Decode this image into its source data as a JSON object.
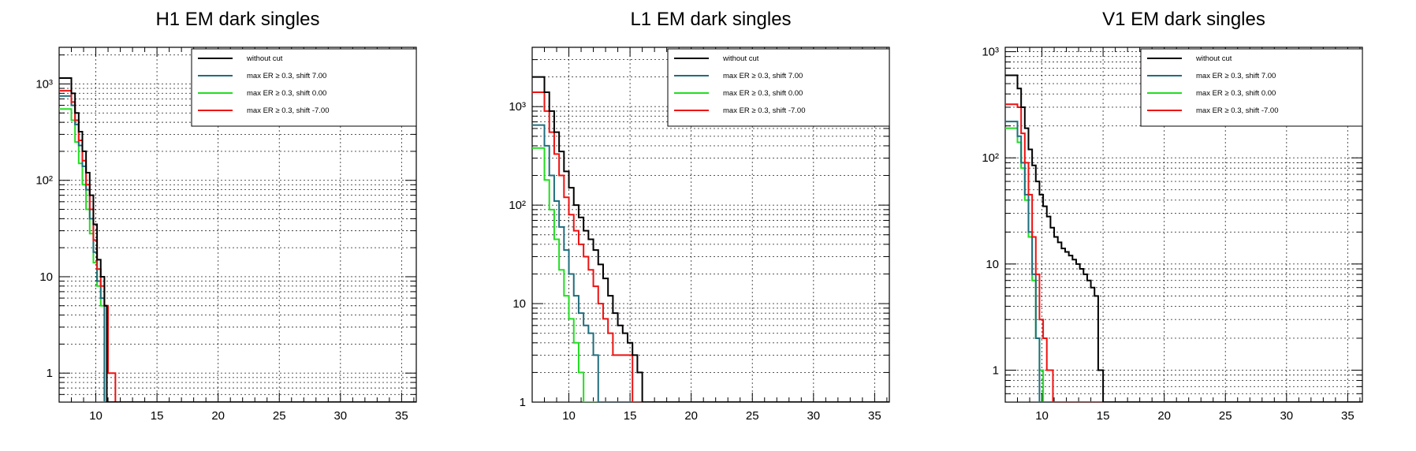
{
  "chart_data": [
    {
      "type": "line",
      "step": true,
      "title": "H1 EM dark singles",
      "xlabel": "",
      "ylabel": "",
      "xlim": [
        7,
        36.2
      ],
      "ylim": [
        0.5,
        2400
      ],
      "ylog": true,
      "grid": true,
      "legend_position": "top-right",
      "x_ticks": [
        10,
        15,
        20,
        25,
        30,
        35
      ],
      "x_tick_labels": [
        "10",
        "15",
        "20",
        "25",
        "30",
        "35"
      ],
      "y_ticks": [
        1,
        10,
        100,
        1000
      ],
      "y_tick_labels": [
        "1",
        "10",
        "10²",
        "10³"
      ],
      "series": [
        {
          "name": "without cut",
          "color": "#000000",
          "x": [
            7.0,
            8.0,
            8.3,
            8.6,
            8.9,
            9.2,
            9.5,
            9.8,
            10.1,
            10.4,
            10.7,
            10.9
          ],
          "y": [
            1150,
            800,
            500,
            320,
            200,
            120,
            70,
            35,
            15,
            10,
            5,
            0.5
          ]
        },
        {
          "name": "max ER ≥ 0.3, shift 7.00",
          "color": "#1f6d7e",
          "x": [
            7.0,
            8.0,
            8.3,
            8.6,
            8.9,
            9.2,
            9.5,
            9.8,
            10.1,
            10.4,
            10.7
          ],
          "y": [
            750,
            600,
            380,
            230,
            140,
            80,
            40,
            18,
            9,
            6,
            0.5
          ]
        },
        {
          "name": "max ER ≥ 0.3, shift 0.00",
          "color": "#22dd22",
          "x": [
            7.0,
            8.0,
            8.3,
            8.6,
            8.9,
            9.2,
            9.5,
            9.8,
            10.1,
            10.4,
            10.7
          ],
          "y": [
            550,
            420,
            250,
            150,
            90,
            50,
            28,
            14,
            8,
            5,
            0.5
          ]
        },
        {
          "name": "max ER ≥ 0.3, shift -7.00",
          "color": "#ee1111",
          "x": [
            7.0,
            8.0,
            8.3,
            8.6,
            8.9,
            9.2,
            9.5,
            9.8,
            10.1,
            10.4,
            10.7,
            11.0,
            11.6
          ],
          "y": [
            850,
            650,
            420,
            260,
            160,
            90,
            50,
            24,
            12,
            8,
            5,
            1,
            0.5
          ]
        }
      ]
    },
    {
      "type": "line",
      "step": true,
      "title": "L1 EM dark singles",
      "xlabel": "",
      "ylabel": "",
      "xlim": [
        7,
        36.2
      ],
      "ylim": [
        1,
        4000
      ],
      "ylog": true,
      "grid": true,
      "legend_position": "top-right",
      "x_ticks": [
        10,
        15,
        20,
        25,
        30,
        35
      ],
      "x_tick_labels": [
        "10",
        "15",
        "20",
        "25",
        "30",
        "35"
      ],
      "y_ticks": [
        1,
        10,
        100,
        1000
      ],
      "y_tick_labels": [
        "1",
        "10",
        "10²",
        "10³"
      ],
      "series": [
        {
          "name": "without cut",
          "color": "#000000",
          "x": [
            7.0,
            8.0,
            8.4,
            8.8,
            9.2,
            9.6,
            10.0,
            10.4,
            10.8,
            11.2,
            11.6,
            12.0,
            12.4,
            12.8,
            13.2,
            13.6,
            14.0,
            14.4,
            14.8,
            15.2,
            15.6,
            16.0
          ],
          "y": [
            2000,
            1400,
            900,
            550,
            350,
            220,
            150,
            100,
            75,
            55,
            45,
            35,
            25,
            18,
            12,
            8,
            6,
            5,
            4,
            3,
            2,
            1
          ]
        },
        {
          "name": "max ER ≥ 0.3, shift 7.00",
          "color": "#1f6d7e",
          "x": [
            7.0,
            8.0,
            8.4,
            8.8,
            9.2,
            9.6,
            10.0,
            10.4,
            10.8,
            11.2,
            11.6,
            12.0,
            12.4
          ],
          "y": [
            650,
            400,
            200,
            110,
            60,
            35,
            20,
            12,
            8,
            6,
            5,
            3,
            1
          ]
        },
        {
          "name": "max ER ≥ 0.3, shift 0.00",
          "color": "#22dd22",
          "x": [
            7.0,
            8.0,
            8.4,
            8.8,
            9.2,
            9.6,
            10.0,
            10.4,
            10.8,
            11.2
          ],
          "y": [
            380,
            180,
            90,
            45,
            22,
            12,
            7,
            4,
            2,
            1
          ]
        },
        {
          "name": "max ER ≥ 0.3, shift -7.00",
          "color": "#ee1111",
          "x": [
            7.0,
            8.0,
            8.4,
            8.8,
            9.2,
            9.6,
            10.0,
            10.4,
            10.8,
            11.2,
            11.6,
            12.0,
            12.4,
            12.8,
            13.2,
            13.6,
            14.0,
            14.8,
            15.2
          ],
          "y": [
            1400,
            900,
            550,
            330,
            200,
            120,
            80,
            55,
            40,
            30,
            22,
            15,
            10,
            7,
            5,
            3,
            3,
            3,
            1
          ]
        }
      ]
    },
    {
      "type": "line",
      "step": true,
      "title": "V1 EM dark singles",
      "xlabel": "",
      "ylabel": "",
      "xlim": [
        7,
        36.2
      ],
      "ylim": [
        0.5,
        1100
      ],
      "ylog": true,
      "grid": true,
      "legend_position": "top-right",
      "x_ticks": [
        10,
        15,
        20,
        25,
        30,
        35
      ],
      "x_tick_labels": [
        "10",
        "15",
        "20",
        "25",
        "30",
        "35"
      ],
      "y_ticks": [
        1,
        10,
        100,
        1000
      ],
      "y_tick_labels": [
        "1",
        "10",
        "10²",
        "10³"
      ],
      "series": [
        {
          "name": "without cut",
          "color": "#000000",
          "x": [
            7.0,
            8.0,
            8.3,
            8.6,
            8.9,
            9.2,
            9.5,
            9.8,
            10.1,
            10.4,
            10.7,
            11.0,
            11.3,
            11.6,
            11.9,
            12.2,
            12.5,
            12.8,
            13.1,
            13.4,
            13.7,
            14.0,
            14.3,
            14.6,
            15.0
          ],
          "y": [
            600,
            450,
            300,
            190,
            120,
            85,
            60,
            45,
            35,
            28,
            22,
            18,
            16,
            14,
            13,
            12,
            11,
            10,
            9,
            8,
            7,
            6,
            5,
            1,
            0.5
          ]
        },
        {
          "name": "max ER ≥ 0.3, shift 7.00",
          "color": "#1f6d7e",
          "x": [
            7.0,
            8.0,
            8.3,
            8.6,
            8.9,
            9.2,
            9.5,
            9.8
          ],
          "y": [
            220,
            160,
            90,
            45,
            20,
            8,
            2,
            0.5
          ]
        },
        {
          "name": "max ER ≥ 0.3, shift 0.00",
          "color": "#22dd22",
          "x": [
            7.0,
            8.0,
            8.3,
            8.6,
            8.9,
            9.2,
            9.5,
            9.8,
            10.1
          ],
          "y": [
            190,
            140,
            80,
            40,
            18,
            7,
            2,
            1,
            0.5
          ]
        },
        {
          "name": "max ER ≥ 0.3, shift -7.00",
          "color": "#ee1111",
          "x": [
            7.0,
            8.0,
            8.3,
            8.6,
            8.9,
            9.2,
            9.5,
            9.8,
            10.1,
            10.4,
            10.9
          ],
          "y": [
            320,
            300,
            170,
            90,
            45,
            18,
            8,
            3,
            2,
            1,
            0.5
          ]
        }
      ]
    }
  ]
}
